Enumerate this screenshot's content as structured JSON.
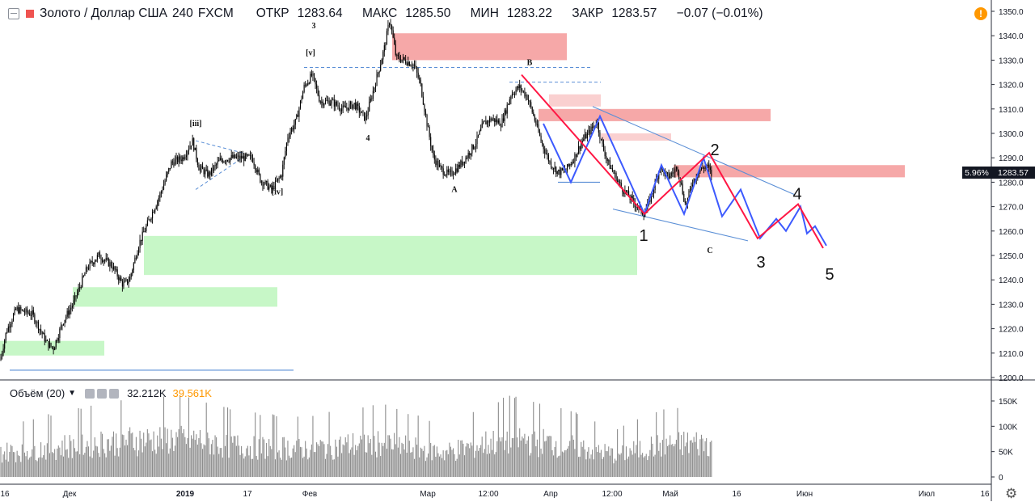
{
  "header": {
    "symbol": "Золото / Доллар США",
    "interval": "240",
    "source": "FXCM",
    "open_label": "ОТКР",
    "open": "1283.64",
    "high_label": "МАКС",
    "high": "1285.50",
    "low_label": "МИН",
    "low": "1283.22",
    "close_label": "ЗАКР",
    "close": "1283.57",
    "change": "−0.07 (−0.01%)"
  },
  "volume_pane": {
    "label": "Объём (20)",
    "value": "32.212K",
    "ma_value": "39.561K",
    "ticks": [
      "150K",
      "100K",
      "50K",
      "0"
    ]
  },
  "price_badge": {
    "percent": "5.96%",
    "price": "1283.57"
  },
  "colors": {
    "candle": "#000000",
    "red_zone": "#f06e6e",
    "green_zone": "#8fef8f",
    "blue_wave": "#3d5afe",
    "red_wave": "#ff1744",
    "trend_line": "#5b8fd6",
    "volume": "#8c8c8c",
    "alert": "#ff9800"
  },
  "icons": [
    "collapse-icon",
    "symbol-color-icon",
    "chevron-down-icon",
    "settings-icon",
    "alert-icon",
    "gear-icon"
  ],
  "chart_data": {
    "type": "candlestick",
    "ylim": [
      1200,
      1352
    ],
    "y_ticks": [
      1200,
      1210,
      1220,
      1230,
      1240,
      1250,
      1260,
      1270,
      1280,
      1290,
      1300,
      1310,
      1320,
      1330,
      1340,
      1350
    ],
    "x_ticks": [
      "16",
      "Дек",
      "2019",
      "17",
      "Фев",
      "Мар",
      "12:00",
      "Апр",
      "12:00",
      "Май",
      "16",
      "Июн",
      "Июл",
      "16"
    ],
    "price_path": [
      [
        0,
        1207
      ],
      [
        8,
        1219
      ],
      [
        20,
        1228
      ],
      [
        40,
        1226
      ],
      [
        58,
        1214
      ],
      [
        66,
        1212
      ],
      [
        78,
        1223
      ],
      [
        90,
        1230
      ],
      [
        108,
        1245
      ],
      [
        122,
        1250
      ],
      [
        138,
        1246
      ],
      [
        152,
        1238
      ],
      [
        160,
        1240
      ],
      [
        172,
        1255
      ],
      [
        185,
        1265
      ],
      [
        198,
        1275
      ],
      [
        212,
        1288
      ],
      [
        226,
        1290
      ],
      [
        238,
        1297
      ],
      [
        246,
        1286
      ],
      [
        258,
        1283
      ],
      [
        272,
        1289
      ],
      [
        286,
        1290
      ],
      [
        300,
        1290
      ],
      [
        312,
        1290
      ],
      [
        322,
        1281
      ],
      [
        336,
        1277
      ],
      [
        348,
        1283
      ],
      [
        356,
        1299
      ],
      [
        366,
        1305
      ],
      [
        376,
        1319
      ],
      [
        386,
        1324
      ],
      [
        396,
        1313
      ],
      [
        410,
        1313
      ],
      [
        424,
        1310
      ],
      [
        438,
        1312
      ],
      [
        452,
        1306
      ],
      [
        462,
        1318
      ],
      [
        470,
        1328
      ],
      [
        476,
        1336
      ],
      [
        482,
        1347
      ],
      [
        490,
        1331
      ],
      [
        500,
        1330
      ],
      [
        512,
        1328
      ],
      [
        520,
        1320
      ],
      [
        528,
        1304
      ],
      [
        536,
        1290
      ],
      [
        546,
        1285
      ],
      [
        556,
        1283
      ],
      [
        566,
        1286
      ],
      [
        576,
        1290
      ],
      [
        588,
        1296
      ],
      [
        598,
        1304
      ],
      [
        608,
        1306
      ],
      [
        620,
        1304
      ],
      [
        632,
        1316
      ],
      [
        642,
        1319
      ],
      [
        652,
        1315
      ],
      [
        660,
        1307
      ],
      [
        670,
        1296
      ],
      [
        680,
        1288
      ],
      [
        690,
        1284
      ],
      [
        700,
        1285
      ],
      [
        710,
        1290
      ],
      [
        720,
        1297
      ],
      [
        730,
        1301
      ],
      [
        738,
        1305
      ],
      [
        744,
        1296
      ],
      [
        752,
        1288
      ],
      [
        760,
        1283
      ],
      [
        768,
        1278
      ],
      [
        778,
        1274
      ],
      [
        788,
        1270
      ],
      [
        797,
        1267
      ],
      [
        806,
        1275
      ],
      [
        816,
        1286
      ],
      [
        826,
        1282
      ],
      [
        838,
        1286
      ],
      [
        848,
        1270
      ],
      [
        856,
        1280
      ],
      [
        866,
        1285
      ],
      [
        874,
        1287
      ],
      [
        880,
        1283
      ]
    ],
    "volume_profile": [
      [
        0,
        60
      ],
      [
        100,
        80
      ],
      [
        160,
        90
      ],
      [
        230,
        95
      ],
      [
        300,
        75
      ],
      [
        380,
        70
      ],
      [
        470,
        85
      ],
      [
        550,
        60
      ],
      [
        630,
        95
      ],
      [
        700,
        80
      ],
      [
        760,
        55
      ],
      [
        820,
        80
      ],
      [
        880,
        85
      ]
    ],
    "zones": [
      {
        "color": "red",
        "x": [
          485,
          701
        ],
        "y": [
          1330,
          1341
        ]
      },
      {
        "color": "red",
        "x": [
          666,
          953
        ],
        "y": [
          1305,
          1310
        ]
      },
      {
        "color": "red",
        "x": [
          833,
          1119
        ],
        "y": [
          1282,
          1287
        ]
      },
      {
        "color": "pink",
        "x": [
          679,
          743
        ],
        "y": [
          1311,
          1316
        ]
      },
      {
        "color": "pink",
        "x": [
          743,
          830
        ],
        "y": [
          1297,
          1300
        ]
      },
      {
        "color": "green",
        "x": [
          178,
          788
        ],
        "y": [
          1242,
          1258
        ]
      },
      {
        "color": "green",
        "x": [
          90,
          343
        ],
        "y": [
          1229,
          1237
        ]
      },
      {
        "color": "green",
        "x": [
          0,
          129
        ],
        "y": [
          1209,
          1215
        ]
      }
    ],
    "red_wave": [
      [
        645,
        1324
      ],
      [
        797,
        1267
      ],
      [
        877,
        1292
      ],
      [
        937,
        1257
      ],
      [
        987,
        1271
      ],
      [
        1018,
        1253
      ]
    ],
    "blue_wave": [
      [
        672,
        1304
      ],
      [
        706,
        1280
      ],
      [
        742,
        1307
      ],
      [
        797,
        1267
      ],
      [
        818,
        1287
      ],
      [
        846,
        1267
      ],
      [
        870,
        1290
      ],
      [
        893,
        1266
      ],
      [
        916,
        1277
      ],
      [
        940,
        1257
      ],
      [
        960,
        1265
      ],
      [
        972,
        1260
      ],
      [
        990,
        1270
      ],
      [
        998,
        1259
      ],
      [
        1008,
        1262
      ],
      [
        1022,
        1254
      ]
    ],
    "trend_lines": [
      {
        "x": [
          733,
          982
        ],
        "y": [
          1311,
          1275
        ]
      },
      {
        "x": [
          758,
          925
        ],
        "y": [
          1269,
          1256
        ]
      },
      {
        "x": [
          12,
          363
        ],
        "y": [
          1203,
          1203
        ]
      },
      {
        "x": [
          690,
          742
        ],
        "y": [
          1280,
          1280
        ]
      }
    ],
    "dashed_lines": [
      {
        "x": [
          376,
          730
        ],
        "y": [
          1327,
          1327
        ]
      },
      {
        "x": [
          630,
          743
        ],
        "y": [
          1321,
          1321
        ]
      },
      {
        "x": [
          242,
          300
        ],
        "y": [
          1297,
          1292
        ]
      },
      {
        "x": [
          242,
          300
        ],
        "y": [
          1277,
          1290
        ]
      }
    ],
    "annotations": [
      {
        "text": "3",
        "x": 388,
        "y": 1343,
        "style": "serif"
      },
      {
        "text": "[v]",
        "x": 384,
        "y": 1332,
        "style": "serif"
      },
      {
        "text": "[iii]",
        "x": 242,
        "y": 1303,
        "style": "serif"
      },
      {
        "text": "[iv]",
        "x": 343,
        "y": 1275,
        "style": "serif"
      },
      {
        "text": "4",
        "x": 455,
        "y": 1297,
        "style": "serif"
      },
      {
        "text": "B",
        "x": 655,
        "y": 1328,
        "style": "serif"
      },
      {
        "text": "A",
        "x": 562,
        "y": 1276,
        "style": "serif"
      },
      {
        "text": "C",
        "x": 878,
        "y": 1251,
        "style": "serif"
      },
      {
        "text": "1",
        "x": 796,
        "y": 1256,
        "style": "sans"
      },
      {
        "text": "2",
        "x": 884,
        "y": 1291,
        "style": "sans"
      },
      {
        "text": "3",
        "x": 941,
        "y": 1245,
        "style": "sans"
      },
      {
        "text": "4",
        "x": 986,
        "y": 1273,
        "style": "sans"
      },
      {
        "text": "5",
        "x": 1026,
        "y": 1240,
        "style": "sans"
      }
    ]
  }
}
